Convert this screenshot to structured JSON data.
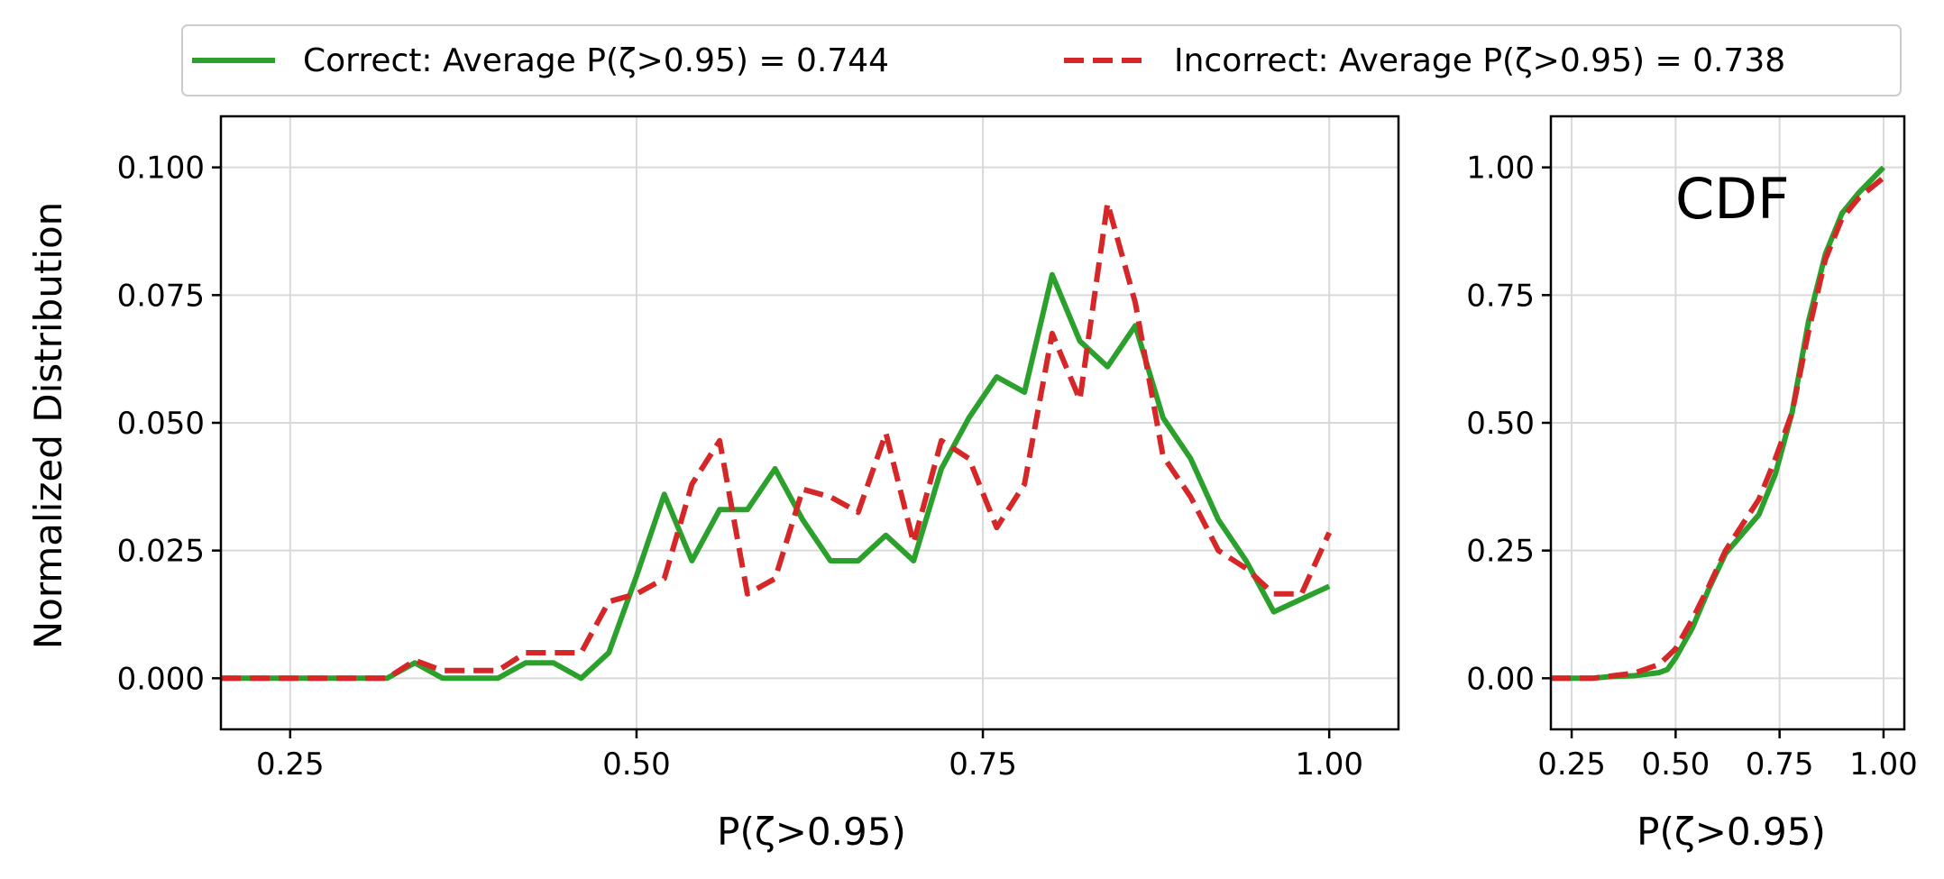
{
  "legend": {
    "placement": "top-center",
    "entries": [
      {
        "label": "Correct: Average P(ζ>0.95) = 0.744",
        "color": "#2ca02c",
        "style": "solid"
      },
      {
        "label": "Incorrect: Average P(ζ>0.95) = 0.738",
        "color": "#d62728",
        "style": "dashed"
      }
    ]
  },
  "chart_data": [
    {
      "type": "line",
      "xlabel": "P(ζ>0.95)",
      "ylabel": "Normalized Distribution",
      "xlim": [
        0.2,
        1.05
      ],
      "ylim": [
        -0.01,
        0.11
      ],
      "xticks": [
        0.25,
        0.5,
        0.75,
        1.0
      ],
      "xtick_labels": [
        "0.25",
        "0.50",
        "0.75",
        "1.00"
      ],
      "yticks": [
        0.0,
        0.025,
        0.05,
        0.075,
        0.1
      ],
      "ytick_labels": [
        "0.000",
        "0.025",
        "0.050",
        "0.075",
        "0.100"
      ],
      "grid": true,
      "series": [
        {
          "name": "Correct",
          "color": "#2ca02c",
          "style": "solid",
          "x": [
            0.2,
            0.22,
            0.24,
            0.26,
            0.28,
            0.3,
            0.32,
            0.34,
            0.36,
            0.38,
            0.4,
            0.42,
            0.44,
            0.46,
            0.48,
            0.5,
            0.52,
            0.54,
            0.56,
            0.58,
            0.6,
            0.62,
            0.64,
            0.66,
            0.68,
            0.7,
            0.72,
            0.74,
            0.76,
            0.78,
            0.8,
            0.82,
            0.84,
            0.86,
            0.88,
            0.9,
            0.92,
            0.94,
            0.96,
            0.98,
            1.0
          ],
          "y": [
            0.0,
            0.0,
            0.0,
            0.0,
            0.0,
            0.0,
            0.0,
            0.003,
            0.0,
            0.0,
            0.0,
            0.003,
            0.003,
            0.0,
            0.005,
            0.02,
            0.036,
            0.023,
            0.033,
            0.033,
            0.041,
            0.031,
            0.023,
            0.023,
            0.028,
            0.023,
            0.041,
            0.051,
            0.059,
            0.056,
            0.079,
            0.066,
            0.061,
            0.069,
            0.051,
            0.043,
            0.031,
            0.023,
            0.013,
            0.0155,
            0.018
          ]
        },
        {
          "name": "Incorrect",
          "color": "#d62728",
          "style": "dashed",
          "x": [
            0.2,
            0.22,
            0.24,
            0.26,
            0.28,
            0.3,
            0.32,
            0.34,
            0.36,
            0.38,
            0.4,
            0.42,
            0.44,
            0.46,
            0.48,
            0.5,
            0.52,
            0.54,
            0.56,
            0.58,
            0.6,
            0.62,
            0.64,
            0.66,
            0.68,
            0.7,
            0.72,
            0.74,
            0.76,
            0.78,
            0.8,
            0.82,
            0.84,
            0.86,
            0.88,
            0.9,
            0.92,
            0.94,
            0.96,
            0.98,
            1.0
          ],
          "y": [
            0.0,
            0.0,
            0.0,
            0.0,
            0.0,
            0.0,
            0.0,
            0.0035,
            0.0015,
            0.0015,
            0.0015,
            0.005,
            0.005,
            0.005,
            0.015,
            0.0165,
            0.0195,
            0.038,
            0.0465,
            0.0165,
            0.0195,
            0.037,
            0.0355,
            0.0325,
            0.048,
            0.0265,
            0.0465,
            0.043,
            0.0295,
            0.038,
            0.0675,
            0.0545,
            0.093,
            0.0735,
            0.0435,
            0.0355,
            0.025,
            0.0215,
            0.0165,
            0.0165,
            0.0285
          ]
        }
      ]
    },
    {
      "type": "line",
      "annotation": "CDF",
      "xlabel": "P(ζ>0.95)",
      "ylabel": "",
      "xlim": [
        0.2,
        1.05
      ],
      "ylim": [
        -0.1,
        1.1
      ],
      "xticks": [
        0.25,
        0.5,
        0.75,
        1.0
      ],
      "xtick_labels": [
        "0.25",
        "0.50",
        "0.75",
        "1.00"
      ],
      "yticks": [
        0.0,
        0.25,
        0.5,
        0.75,
        1.0
      ],
      "ytick_labels": [
        "0.00",
        "0.25",
        "0.50",
        "0.75",
        "1.00"
      ],
      "grid": true,
      "series": [
        {
          "name": "Correct",
          "color": "#2ca02c",
          "style": "solid",
          "x": [
            0.2,
            0.3,
            0.34,
            0.4,
            0.46,
            0.48,
            0.5,
            0.54,
            0.58,
            0.62,
            0.66,
            0.7,
            0.74,
            0.78,
            0.82,
            0.86,
            0.9,
            0.94,
            1.0
          ],
          "y": [
            0.0,
            0.0,
            0.003,
            0.005,
            0.011,
            0.017,
            0.04,
            0.098,
            0.175,
            0.244,
            0.282,
            0.32,
            0.4,
            0.52,
            0.7,
            0.83,
            0.91,
            0.95,
            1.0
          ]
        },
        {
          "name": "Incorrect",
          "color": "#d62728",
          "style": "dashed",
          "x": [
            0.2,
            0.3,
            0.34,
            0.4,
            0.46,
            0.48,
            0.5,
            0.54,
            0.58,
            0.62,
            0.66,
            0.7,
            0.74,
            0.78,
            0.82,
            0.86,
            0.9,
            0.94,
            1.0
          ],
          "y": [
            0.0,
            0.0,
            0.004,
            0.01,
            0.027,
            0.042,
            0.058,
            0.115,
            0.18,
            0.25,
            0.3,
            0.35,
            0.43,
            0.52,
            0.68,
            0.82,
            0.9,
            0.94,
            0.98
          ]
        }
      ]
    }
  ]
}
